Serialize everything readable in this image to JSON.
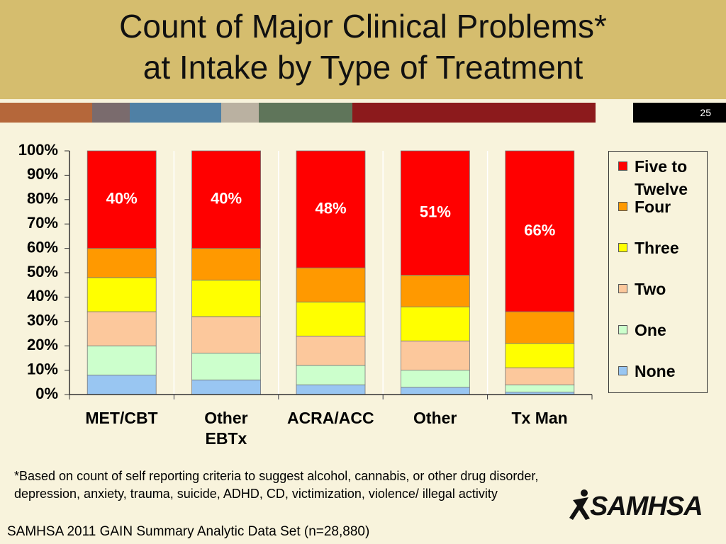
{
  "header": {
    "title": "Count of Major Clinical Problems*\nat Intake by Type of Treatment",
    "slide_number": "25"
  },
  "chart_data": {
    "type": "stacked_bar",
    "categories": [
      "MET/CBT",
      "Other\nEBTx",
      "ACRA/ACC",
      "Other",
      "Tx Man"
    ],
    "series": [
      {
        "name": "None",
        "color": "#99c6f2",
        "values": [
          8,
          6,
          4,
          3,
          1
        ]
      },
      {
        "name": "One",
        "color": "#ccffcc",
        "values": [
          12,
          11,
          8,
          7,
          3
        ]
      },
      {
        "name": "Two",
        "color": "#fcc89c",
        "values": [
          14,
          15,
          12,
          12,
          7
        ]
      },
      {
        "name": "Three",
        "color": "#ffff00",
        "values": [
          14,
          15,
          14,
          14,
          10
        ]
      },
      {
        "name": "Four",
        "color": "#ff9900",
        "values": [
          12,
          13,
          14,
          13,
          13
        ]
      },
      {
        "name": "Five to Twelve",
        "color": "#ff0000",
        "values": [
          40,
          40,
          48,
          51,
          66
        ],
        "value_labels": [
          "40%",
          "40%",
          "48%",
          "51%",
          "66%"
        ]
      }
    ],
    "ylim": [
      0,
      100
    ],
    "yticks": [
      {
        "value": 0,
        "label": "0%"
      },
      {
        "value": 10,
        "label": "10%"
      },
      {
        "value": 20,
        "label": "20%"
      },
      {
        "value": 30,
        "label": "30%"
      },
      {
        "value": 40,
        "label": "40%"
      },
      {
        "value": 50,
        "label": "50%"
      },
      {
        "value": 60,
        "label": "60%"
      },
      {
        "value": 70,
        "label": "70%"
      },
      {
        "value": 80,
        "label": "80%"
      },
      {
        "value": 90,
        "label": "90%"
      },
      {
        "value": 100,
        "label": "100%"
      }
    ],
    "legend": "right"
  },
  "footnote": "*Based on count of self reporting criteria to suggest alcohol, cannabis, or other drug disorder, depression, anxiety, trauma, suicide, ADHD, CD, victimization, violence/ illegal activity",
  "source": "SAMHSA 2011 GAIN Summary Analytic Data Set (n=28,880)",
  "logo": "SAMHSA"
}
